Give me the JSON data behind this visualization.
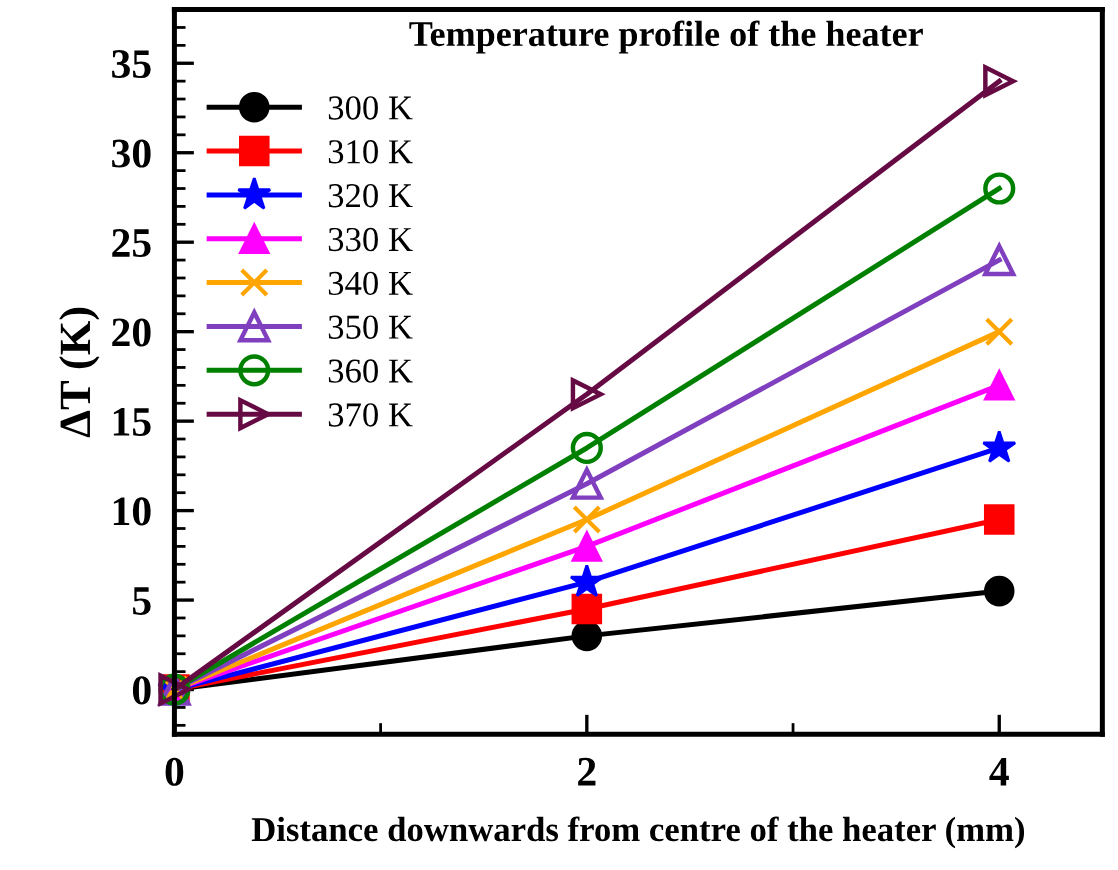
{
  "chart_data": {
    "type": "line",
    "title": "Temperature profile of the heater",
    "xlabel": "Distance downwards from centre of the heater (mm)",
    "ylabel": "ΔT (K)",
    "x": [
      0,
      2,
      4
    ],
    "xlim": [
      0,
      4.5
    ],
    "xticks": [
      0,
      2,
      4
    ],
    "ylim": [
      -2.5,
      38
    ],
    "yticks": [
      0,
      5,
      10,
      15,
      20,
      25,
      30,
      35
    ],
    "legend": "top left",
    "grid": false,
    "line_style": "solid",
    "series": [
      {
        "name": "300 K",
        "color": "#000000",
        "marker": "circle",
        "values": [
          0,
          3,
          5.5
        ]
      },
      {
        "name": "310 K",
        "color": "#ff0000",
        "marker": "square",
        "values": [
          0,
          4.5,
          9.5
        ]
      },
      {
        "name": "320 K",
        "color": "#0000ff",
        "marker": "star",
        "values": [
          0,
          6,
          13.5
        ]
      },
      {
        "name": "330 K",
        "color": "#ff00ff",
        "marker": "triangle",
        "values": [
          0,
          8,
          17
        ]
      },
      {
        "name": "340 K",
        "color": "#ffa500",
        "marker": "cross",
        "values": [
          0,
          9.5,
          20
        ]
      },
      {
        "name": "350 K",
        "color": "#7f3fbf",
        "marker": "triangle-open",
        "values": [
          0,
          11.5,
          24
        ]
      },
      {
        "name": "360 K",
        "color": "#008000",
        "marker": "circle-open",
        "values": [
          0,
          13.5,
          28
        ]
      },
      {
        "name": "370 K",
        "color": "#660a44",
        "marker": "triangle-right-open",
        "values": [
          0,
          16.5,
          34
        ]
      }
    ]
  }
}
